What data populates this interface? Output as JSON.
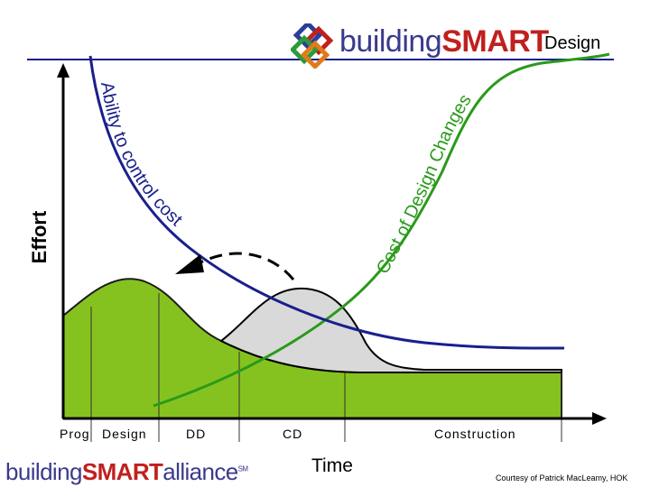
{
  "header": {
    "brand_light": "building",
    "brand_bold": "SMART",
    "subtitle": "Design",
    "logo_icon": "buildingsmart-logo-icon"
  },
  "axes": {
    "y_label": "Effort",
    "x_label": "Time"
  },
  "phases": {
    "prog": "Prog",
    "design": "Design",
    "dd": "DD",
    "cd": "CD",
    "construction": "Construction"
  },
  "curves": {
    "ability": "Ability to control cost",
    "cost_of_change": "Cost of Design Changes"
  },
  "footer": {
    "logo_light": "building",
    "logo_bold": "SMART",
    "logo_tail": "alliance",
    "logo_tm": "SM",
    "credit": "Courtesy of Patrick MacLeamy, HOK"
  },
  "colors": {
    "green_fill": "#86c21f",
    "green_line": "#2a9a1a",
    "blue_line": "#1a1f8c",
    "gray_fill": "#d9d9d9",
    "brand_blue": "#3a3a8c",
    "brand_red": "#c0201e"
  }
}
